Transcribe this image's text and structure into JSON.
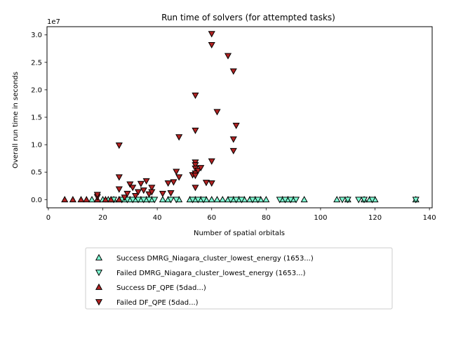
{
  "chart_data": {
    "type": "scatter",
    "title": "Run time of solvers (for attempted tasks)",
    "xlabel": "Number of spatial orbitals",
    "ylabel": "Overall run time in seconds",
    "y_offset_label": "1e7",
    "xlim": [
      -0.5,
      141
    ],
    "ylim": [
      -1500000,
      31500000
    ],
    "x_ticks": [
      0,
      20,
      40,
      60,
      80,
      100,
      120,
      140
    ],
    "y_ticks": [
      0,
      5000000,
      10000000,
      15000000,
      20000000,
      25000000,
      30000000
    ],
    "y_tick_labels": [
      "0.0",
      "0.5",
      "1.0",
      "1.5",
      "2.0",
      "2.5",
      "3.0"
    ],
    "legend_position": "below",
    "grid": false,
    "series": [
      {
        "name": "Success DMRG_Niagara_cluster_lowest_energy (1653...)",
        "marker": "triangle-up",
        "color": "#7fffd4",
        "x": [
          16,
          18,
          20,
          22,
          24,
          26,
          28,
          30,
          32,
          34,
          36,
          38,
          42,
          44,
          48,
          52,
          54,
          56,
          58,
          60,
          62,
          64,
          66,
          68,
          70,
          72,
          74,
          76,
          78,
          80,
          86,
          88,
          90,
          94,
          106,
          110,
          116,
          118,
          120,
          135
        ],
        "y": [
          0,
          0,
          0,
          0,
          0,
          0,
          0,
          0,
          0,
          0,
          0,
          0,
          0,
          0,
          0,
          0,
          0,
          0,
          0,
          0,
          0,
          0,
          0,
          0,
          0,
          0,
          0,
          0,
          0,
          0,
          0,
          0,
          0,
          0,
          0,
          0,
          0,
          0,
          0,
          0
        ]
      },
      {
        "name": "Failed DMRG_Niagara_cluster_lowest_energy (1653...)",
        "marker": "triangle-down",
        "color": "#7fffd4",
        "x": [
          24,
          27,
          29,
          31,
          33,
          35,
          37,
          39,
          45,
          47,
          53,
          55,
          57,
          67,
          69,
          71,
          75,
          77,
          85,
          87,
          89,
          91,
          108,
          110,
          114,
          116,
          119,
          135
        ],
        "y": [
          0,
          0,
          0,
          0,
          0,
          0,
          0,
          0,
          0,
          0,
          0,
          0,
          0,
          0,
          0,
          0,
          0,
          0,
          0,
          0,
          0,
          0,
          0,
          0,
          0,
          0,
          0,
          0
        ]
      },
      {
        "name": "Success DF_QPE (5dad...)",
        "marker": "triangle-up",
        "color": "#b22222",
        "x": [
          6,
          9,
          12,
          14,
          18,
          21,
          23,
          26
        ],
        "y": [
          0,
          0,
          0,
          0,
          0,
          0,
          0,
          0
        ]
      },
      {
        "name": "Failed DF_QPE (5dad...)",
        "marker": "triangle-down",
        "color": "#b22222",
        "x": [
          18,
          18,
          26,
          26,
          26,
          28,
          29,
          30,
          31,
          32,
          33,
          34,
          35,
          36,
          37,
          38,
          38,
          42,
          44,
          45,
          46,
          47,
          48,
          48,
          53,
          54,
          54,
          54,
          54,
          54,
          54,
          54,
          54,
          55,
          56,
          58,
          60,
          60,
          60,
          60,
          62,
          66,
          68,
          68,
          68,
          69
        ],
        "y": [
          500000,
          900000,
          9900000,
          4100000,
          1900000,
          400000,
          1100000,
          2800000,
          2200000,
          700000,
          1400000,
          2900000,
          1700000,
          3400000,
          1000000,
          2200000,
          1400000,
          1100000,
          3000000,
          1200000,
          3200000,
          5100000,
          4100000,
          11400000,
          4500000,
          19000000,
          12600000,
          6800000,
          6300000,
          5700000,
          4800000,
          4400000,
          2200000,
          5300000,
          5800000,
          3100000,
          30200000,
          28200000,
          7000000,
          3000000,
          16000000,
          26200000,
          23400000,
          11000000,
          8900000,
          13500000
        ]
      }
    ]
  }
}
